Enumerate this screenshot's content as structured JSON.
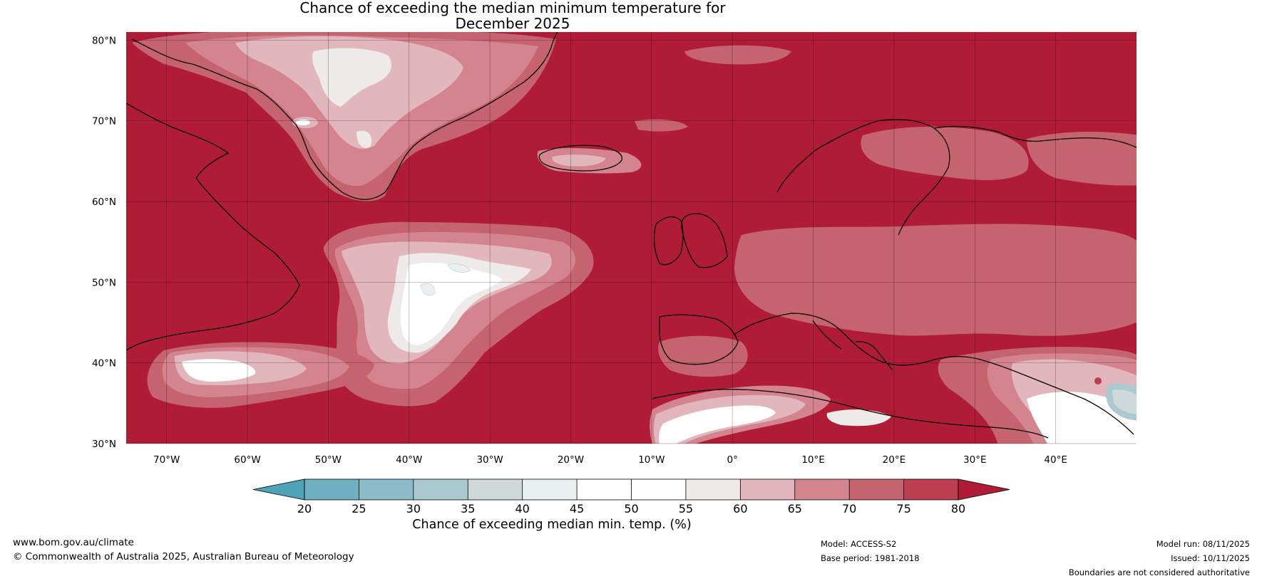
{
  "title": {
    "line1": "Chance of exceeding the median minimum temperature for",
    "line2": "December 2025"
  },
  "map": {
    "lat_labels": [
      "80°N",
      "70°N",
      "60°N",
      "50°N",
      "40°N",
      "30°N"
    ],
    "lat_values": [
      80,
      70,
      60,
      50,
      40,
      30
    ],
    "lon_labels": [
      "70°W",
      "60°W",
      "50°W",
      "40°W",
      "30°W",
      "20°W",
      "10°W",
      "0°",
      "10°E",
      "20°E",
      "30°E",
      "40°E"
    ],
    "lon_values": [
      -70,
      -60,
      -50,
      -40,
      -30,
      -20,
      -10,
      0,
      10,
      20,
      30,
      40
    ],
    "extent": {
      "lon_min": -75,
      "lon_max": 50,
      "lat_min": 30,
      "lat_max": 81
    },
    "background_color": "#b01c36"
  },
  "colorbar": {
    "ticks": [
      "20",
      "25",
      "30",
      "35",
      "40",
      "45",
      "50",
      "55",
      "60",
      "65",
      "70",
      "75",
      "80"
    ],
    "colors": [
      "#4fa3b8",
      "#6eb0c0",
      "#8cbcc8",
      "#aac9d0",
      "#cfd9d9",
      "#e9f0f0",
      "#ffffff",
      "#ffffff",
      "#eeeaea",
      "#e2b6bd",
      "#d4848f",
      "#c5636f",
      "#bb3f51",
      "#b01c36"
    ],
    "label": "Chance of exceeding median min. temp. (%)"
  },
  "footer": {
    "website": "www.bom.gov.au/climate",
    "copyright": "© Commonwealth of Australia 2025, Australian Bureau of Meteorology",
    "model": "Model: ACCESS-S2",
    "base_period": "Base period: 1981-2018",
    "model_run": "Model run: 08/11/2025",
    "issued": "Issued: 10/11/2025",
    "disclaimer": "Boundaries are not considered authoritative"
  }
}
